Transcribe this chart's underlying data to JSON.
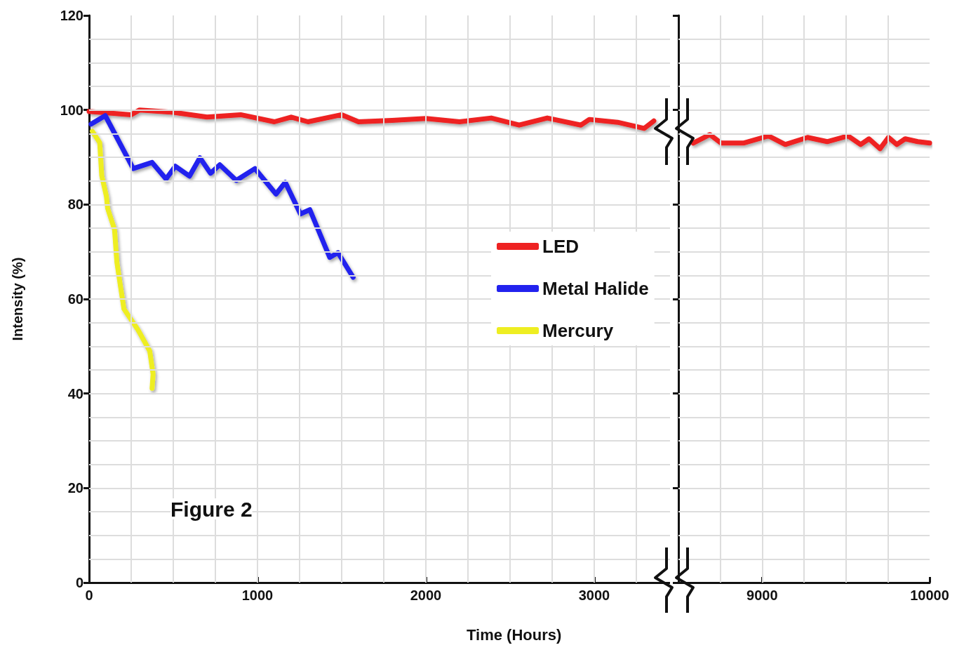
{
  "chart_data": [
    {
      "type": "line",
      "xlabel": "Time (Hours)",
      "ylabel": "Intensity (%)",
      "annotations": [
        "Figure 2"
      ],
      "legend": "center",
      "marker": "none",
      "line_style": "solid",
      "grid": true,
      "xlim": [
        0,
        3450
      ],
      "ylim": [
        0,
        120
      ],
      "xticks": [
        0,
        {
          "value": 250,
          "label": null
        },
        {
          "value": 500,
          "label": null
        },
        {
          "value": 750,
          "label": null
        },
        1000,
        {
          "value": 1250,
          "label": null
        },
        {
          "value": 1500,
          "label": null
        },
        {
          "value": 1750,
          "label": null
        },
        2000,
        {
          "value": 2250,
          "label": null
        },
        {
          "value": 2500,
          "label": null
        },
        {
          "value": 2750,
          "label": null
        },
        3000,
        {
          "value": 3250,
          "label": null
        }
      ],
      "yticks": [
        0,
        {
          "value": 5,
          "label": null
        },
        {
          "value": 10,
          "label": null
        },
        {
          "value": 15,
          "label": null
        },
        20,
        {
          "value": 25,
          "label": null
        },
        {
          "value": 30,
          "label": null
        },
        {
          "value": 35,
          "label": null
        },
        40,
        {
          "value": 45,
          "label": null
        },
        {
          "value": 50,
          "label": null
        },
        {
          "value": 55,
          "label": null
        },
        60,
        {
          "value": 65,
          "label": null
        },
        {
          "value": 70,
          "label": null
        },
        {
          "value": 75,
          "label": null
        },
        80,
        {
          "value": 85,
          "label": null
        },
        {
          "value": 90,
          "label": null
        },
        {
          "value": 95,
          "label": null
        },
        100,
        {
          "value": 105,
          "label": null
        },
        {
          "value": 110,
          "label": null
        },
        {
          "value": 115,
          "label": null
        },
        120
      ],
      "series": [
        {
          "name": "LED",
          "color": "#ee2222",
          "x": [
            0,
            250,
            300,
            500,
            700,
            900,
            1100,
            1200,
            1300,
            1500,
            1600,
            1800,
            2000,
            2200,
            2388,
            2554,
            2721,
            2921,
            2971,
            3138,
            3296,
            3354
          ],
          "values": [
            99.7,
            99.0,
            100,
            99.5,
            98.5,
            99,
            97.5,
            98.5,
            97.5,
            99.0,
            97.5,
            97.8,
            98.2,
            97.5,
            98.3,
            96.8,
            98.3,
            96.8,
            98.0,
            97.4,
            96.1,
            97.7
          ]
        },
        {
          "name": "Metal Halide",
          "color": "#2222ee",
          "x": [
            12,
            96,
            262,
            374,
            457,
            512,
            596,
            658,
            721,
            776,
            874,
            985,
            1110,
            1165,
            1255,
            1311,
            1429,
            1478,
            1568
          ],
          "values": [
            97.0,
            98.8,
            87.6,
            88.9,
            85.4,
            88.1,
            86.0,
            89.9,
            86.6,
            88.4,
            85.1,
            87.6,
            82.2,
            84.7,
            78.0,
            78.9,
            68.8,
            69.8,
            64.6
          ]
        },
        {
          "name": "Mercury",
          "color": "#eeee22",
          "x": [
            19,
            63,
            75,
            103,
            110,
            151,
            165,
            186,
            207,
            290,
            360,
            380,
            374
          ],
          "values": [
            95.5,
            93.1,
            86.1,
            81.7,
            79.2,
            74.7,
            67.8,
            62.8,
            57.9,
            53.5,
            49.0,
            44.1,
            41.1
          ]
        }
      ]
    },
    {
      "type": "line",
      "tick_labels": "x",
      "marker": "none",
      "line_style": "solid",
      "grid": true,
      "xlim": [
        8500,
        10000
      ],
      "ylim": [
        0,
        120
      ],
      "xticks": [
        {
          "value": 8500,
          "label": null
        },
        {
          "value": 8750,
          "label": null
        },
        9000,
        {
          "value": 9250,
          "label": null
        },
        {
          "value": 9500,
          "label": null
        },
        {
          "value": 9750,
          "label": null
        },
        10000
      ],
      "yticks": [
        0,
        {
          "value": 5,
          "label": null
        },
        {
          "value": 10,
          "label": null
        },
        {
          "value": 15,
          "label": null
        },
        20,
        {
          "value": 25,
          "label": null
        },
        {
          "value": 30,
          "label": null
        },
        {
          "value": 35,
          "label": null
        },
        40,
        {
          "value": 45,
          "label": null
        },
        {
          "value": 50,
          "label": null
        },
        {
          "value": 55,
          "label": null
        },
        60,
        {
          "value": 65,
          "label": null
        },
        {
          "value": 70,
          "label": null
        },
        {
          "value": 75,
          "label": null
        },
        80,
        {
          "value": 85,
          "label": null
        },
        {
          "value": 90,
          "label": null
        },
        {
          "value": 95,
          "label": null
        },
        100,
        {
          "value": 105,
          "label": null
        },
        {
          "value": 110,
          "label": null
        },
        {
          "value": 115,
          "label": null
        },
        120
      ],
      "series": [
        {
          "color": "#ee2222",
          "x": [
            8588,
            8688,
            8754,
            8888,
            9038,
            9138,
            9271,
            9388,
            9513,
            9588,
            9638,
            9704,
            9754,
            9804,
            9854,
            9929,
            10000
          ],
          "values": [
            93.0,
            94.8,
            93.0,
            93.0,
            94.5,
            92.7,
            94.2,
            93.3,
            94.5,
            92.7,
            93.9,
            91.8,
            94.2,
            92.7,
            93.9,
            93.3,
            93.0
          ]
        }
      ]
    }
  ]
}
